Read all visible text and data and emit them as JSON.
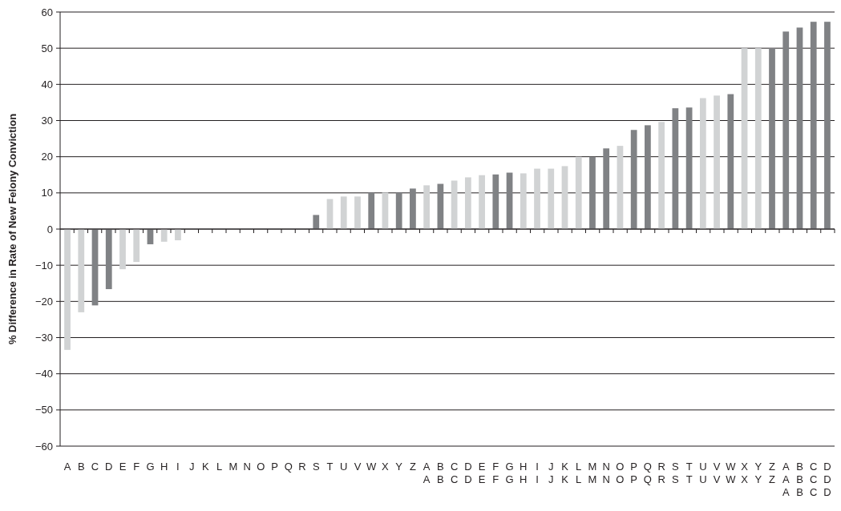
{
  "chart_data": {
    "type": "bar",
    "ylabel": "% Difference in Rate of New Felony Conviction",
    "categories": [
      "A",
      "B",
      "C",
      "D",
      "E",
      "F",
      "G",
      "H",
      "I",
      "J",
      "K",
      "L",
      "M",
      "N",
      "O",
      "P",
      "Q",
      "R",
      "S",
      "T",
      "U",
      "V",
      "W",
      "X",
      "Y",
      "Z",
      "A\nA",
      "B\nB",
      "C\nC",
      "D\nD",
      "E\nE",
      "F\nF",
      "G\nG",
      "H\nH",
      "I\nI",
      "J\nJ",
      "K\nK",
      "L\nL",
      "M\nM",
      "N\nN",
      "O\nO",
      "P\nP",
      "Q\nQ",
      "R\nR",
      "S\nS",
      "T\nT",
      "U\nU",
      "V\nV",
      "W\nW",
      "X\nX",
      "Y\nY",
      "Z\nZ",
      "A\nA\nA",
      "B\nB\nB",
      "C\nC\nC",
      "D\nD\nD"
    ],
    "values": [
      -33.4,
      -23,
      -21.1,
      -16.6,
      -11.1,
      -9.1,
      -4.2,
      -3.5,
      -3.1,
      0,
      0,
      0,
      0,
      0,
      0,
      0,
      0,
      0,
      3.9,
      8.3,
      9,
      9,
      10.1,
      10.1,
      10.1,
      11.2,
      12.1,
      12.5,
      13.4,
      14.3,
      14.9,
      15.1,
      15.6,
      15.4,
      16.7,
      16.7,
      17.4,
      20,
      20,
      22.3,
      23,
      27.4,
      28.7,
      29.6,
      33.4,
      33.6,
      36.2,
      36.9,
      37.3,
      50,
      50,
      50,
      54.6,
      55.7,
      57.3,
      57.3
    ],
    "colors": [
      "#d1d3d4",
      "#d1d3d4",
      "#808285",
      "#808285",
      "#d1d3d4",
      "#d1d3d4",
      "#808285",
      "#d1d3d4",
      "#d1d3d4",
      "#d1d3d4",
      "#d1d3d4",
      "#d1d3d4",
      "#d1d3d4",
      "#d1d3d4",
      "#d1d3d4",
      "#d1d3d4",
      "#d1d3d4",
      "#d1d3d4",
      "#808285",
      "#d1d3d4",
      "#d1d3d4",
      "#d1d3d4",
      "#808285",
      "#d1d3d4",
      "#808285",
      "#808285",
      "#d1d3d4",
      "#808285",
      "#d1d3d4",
      "#d1d3d4",
      "#d1d3d4",
      "#808285",
      "#808285",
      "#d1d3d4",
      "#d1d3d4",
      "#d1d3d4",
      "#d1d3d4",
      "#d1d3d4",
      "#808285",
      "#808285",
      "#d1d3d4",
      "#808285",
      "#808285",
      "#d1d3d4",
      "#808285",
      "#808285",
      "#d1d3d4",
      "#d1d3d4",
      "#808285",
      "#d1d3d4",
      "#d1d3d4",
      "#808285",
      "#808285",
      "#808285",
      "#808285",
      "#808285"
    ],
    "ylim": [
      -60,
      60
    ],
    "yticks": [
      -60,
      -50,
      -40,
      -30,
      -20,
      -10,
      0,
      10,
      20,
      30,
      40,
      50,
      60
    ],
    "grid": "y"
  }
}
